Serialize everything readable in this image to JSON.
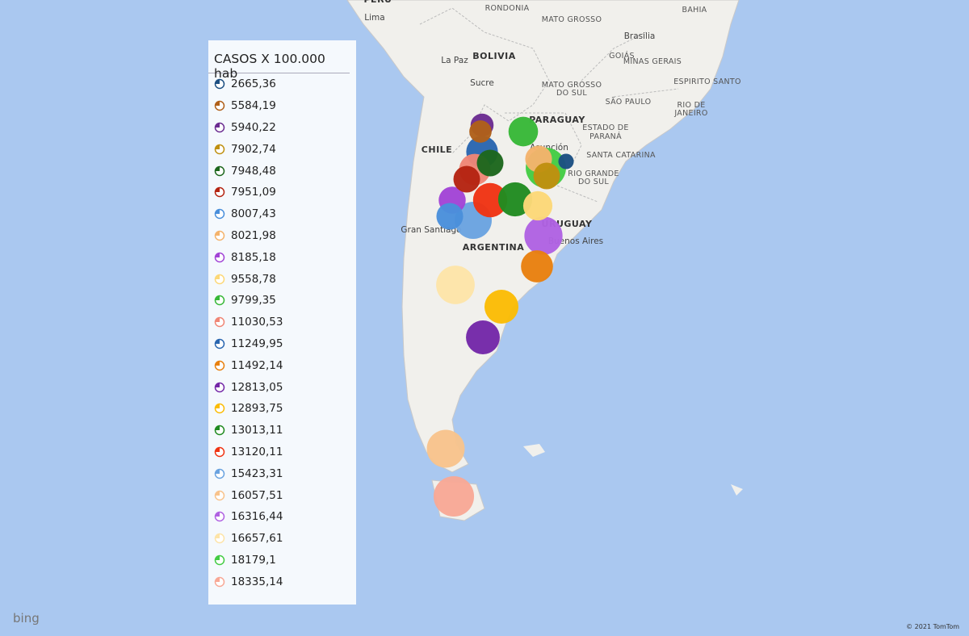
{
  "legend": {
    "title": "CASOS X 100.000 hab",
    "items": [
      {
        "label": "2665,36",
        "value": 2665.36,
        "color": "#1c4f82"
      },
      {
        "label": "5584,19",
        "value": 5584.19,
        "color": "#b0601a"
      },
      {
        "label": "5940,22",
        "value": 5940.22,
        "color": "#6b2c91"
      },
      {
        "label": "7902,74",
        "value": 7902.74,
        "color": "#bf9010"
      },
      {
        "label": "7948,48",
        "value": 7948.48,
        "color": "#1d671d"
      },
      {
        "label": "7951,09",
        "value": 7951.09,
        "color": "#b52412"
      },
      {
        "label": "8007,43",
        "value": 8007.43,
        "color": "#4a8fdb"
      },
      {
        "label": "8021,98",
        "value": 8021.98,
        "color": "#f4b36c"
      },
      {
        "label": "8185,18",
        "value": 8185.18,
        "color": "#a244d6"
      },
      {
        "label": "9558,78",
        "value": 9558.78,
        "color": "#fcd878"
      },
      {
        "label": "9799,35",
        "value": 9799.35,
        "color": "#38b838"
      },
      {
        "label": "11030,53",
        "value": 11030.53,
        "color": "#f08676"
      },
      {
        "label": "11249,95",
        "value": 11249.95,
        "color": "#2a66b0"
      },
      {
        "label": "11492,14",
        "value": 11492.14,
        "color": "#e8800f"
      },
      {
        "label": "12813,05",
        "value": 12813.05,
        "color": "#7428a8"
      },
      {
        "label": "12893,75",
        "value": 12893.75,
        "color": "#fbbc05"
      },
      {
        "label": "13013,11",
        "value": 13013.11,
        "color": "#218b21"
      },
      {
        "label": "13120,11",
        "value": 13120.11,
        "color": "#f03414"
      },
      {
        "label": "15423,31",
        "value": 15423.31,
        "color": "#6aa3e0"
      },
      {
        "label": "16057,51",
        "value": 16057.51,
        "color": "#f8c38c"
      },
      {
        "label": "16316,44",
        "value": 16316.44,
        "color": "#b062e2"
      },
      {
        "label": "16657,61",
        "value": 16657.61,
        "color": "#fde4a8"
      },
      {
        "label": "18179,1",
        "value": 18179.1,
        "color": "#44cc44"
      },
      {
        "label": "18335,14",
        "value": 18335.14,
        "color": "#f8a896"
      }
    ]
  },
  "map_labels": [
    "PERU",
    "Lima",
    "RONDONIA",
    "MATO GROSSO",
    "BAHIA",
    "Brasilia",
    "La Paz",
    "BOLIVIA",
    "GOIÁS",
    "MINAS GERAIS",
    "Sucre",
    "ESPIRITO SANTO",
    "MATO GROSSO",
    "DO SUL",
    "SÃO PAULO",
    "RIO DE",
    "JANEIRO",
    "PARAGUAY",
    "ESTADO DE",
    "PARANÁ",
    "CHILE",
    "SANTA CATARINA",
    "RIO GRANDE",
    "DO SUL",
    "ARGENTINA",
    "Gran Santiago",
    "URUGUAY",
    "Buenos Aires",
    "Asunción"
  ],
  "branding": "bing",
  "copyright": "© 2021 TomTom"
}
